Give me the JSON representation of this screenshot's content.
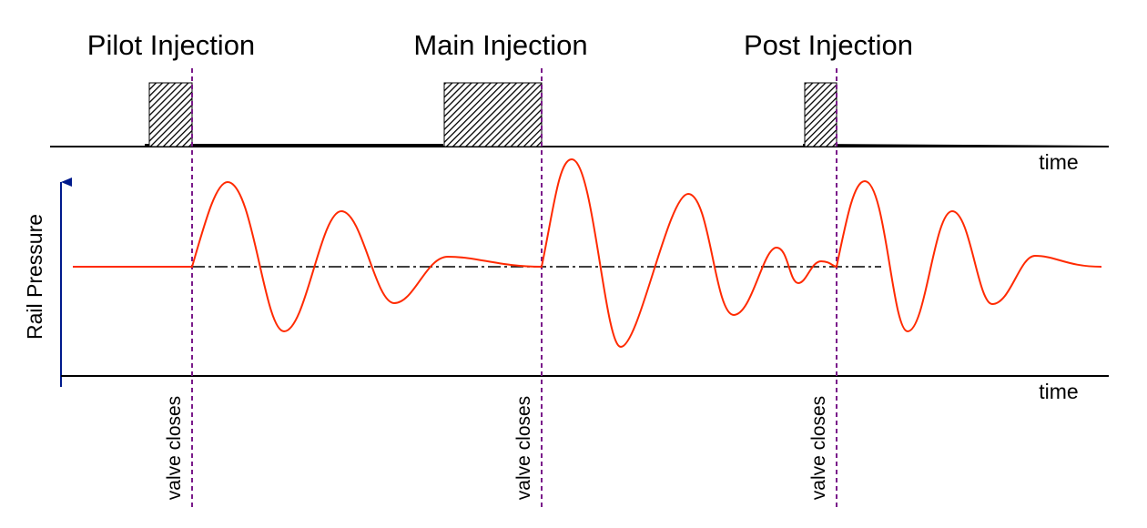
{
  "phases": [
    {
      "label": "Pilot Injection"
    },
    {
      "label": "Main Injection"
    },
    {
      "label": "Post Injection"
    }
  ],
  "axes": {
    "time_label_top": "time",
    "time_label_bottom": "time",
    "y_label": "Rail Pressure"
  },
  "valve_label": "valve closes",
  "colors": {
    "pressure_curve": "#ff2a00",
    "valve_marker": "#7a1a8a",
    "axis_arrow": "#001a8c",
    "baseline": "#000000",
    "pulse_hatch": "#000000"
  }
}
